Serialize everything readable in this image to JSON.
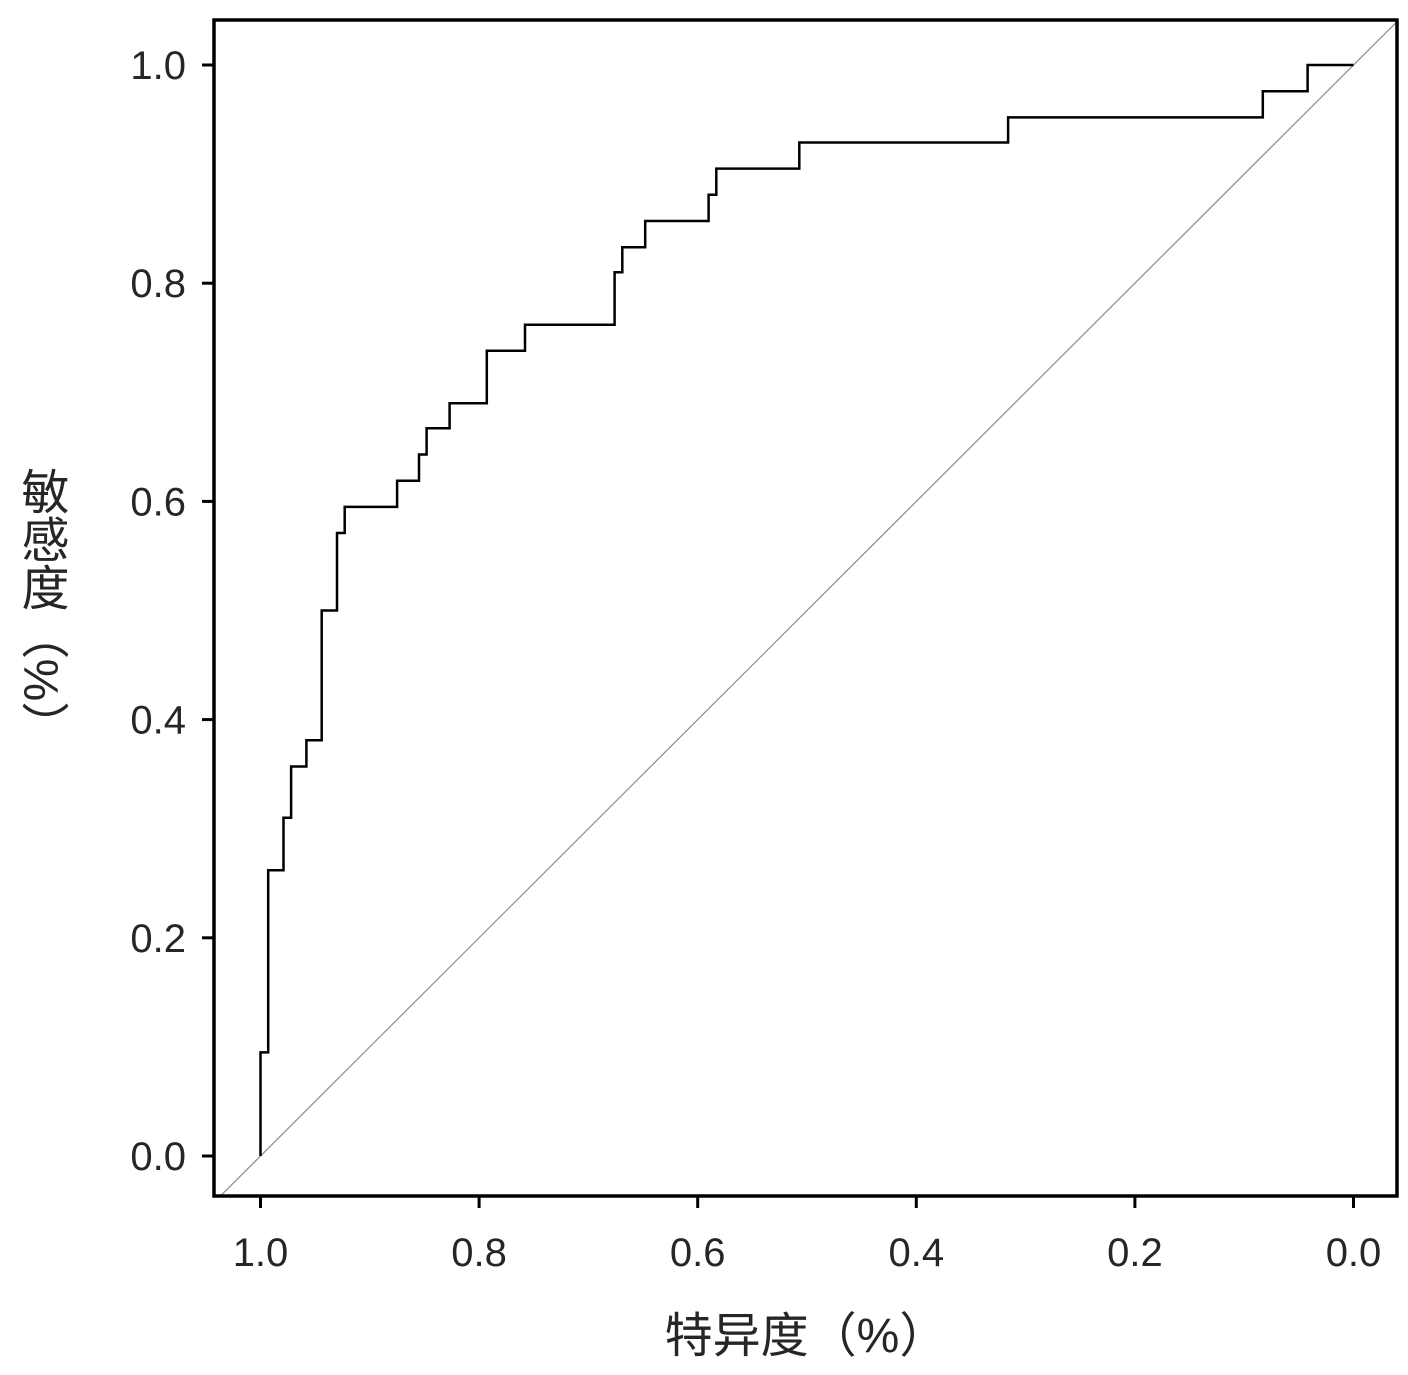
{
  "chart_data": {
    "type": "line",
    "xlabel": "特异度（%）",
    "ylabel": "敏感度（%）",
    "xlim": [
      1.04,
      -0.04
    ],
    "ylim": [
      -0.04,
      1.04
    ],
    "x_direction": "reversed",
    "xticks": [
      1.0,
      0.8,
      0.6,
      0.4,
      0.2,
      0.0
    ],
    "xtick_labels": [
      "1.0",
      "0.8",
      "0.6",
      "0.4",
      "0.2",
      "0.0"
    ],
    "yticks": [
      0.0,
      0.2,
      0.4,
      0.6,
      0.8,
      1.0
    ],
    "ytick_labels": [
      "0.0",
      "0.2",
      "0.4",
      "0.6",
      "0.8",
      "1.0"
    ],
    "grid": false,
    "legend": "none",
    "series": [
      {
        "type": "step-line",
        "color": "#000000",
        "points": [
          [
            1.0,
            0.0
          ],
          [
            1.0,
            0.095
          ],
          [
            0.993,
            0.095
          ],
          [
            0.993,
            0.262
          ],
          [
            0.979,
            0.262
          ],
          [
            0.979,
            0.31
          ],
          [
            0.972,
            0.31
          ],
          [
            0.972,
            0.357
          ],
          [
            0.958,
            0.357
          ],
          [
            0.958,
            0.381
          ],
          [
            0.944,
            0.381
          ],
          [
            0.944,
            0.5
          ],
          [
            0.93,
            0.5
          ],
          [
            0.93,
            0.571
          ],
          [
            0.923,
            0.571
          ],
          [
            0.923,
            0.595
          ],
          [
            0.875,
            0.595
          ],
          [
            0.875,
            0.619
          ],
          [
            0.855,
            0.619
          ],
          [
            0.855,
            0.643
          ],
          [
            0.848,
            0.643
          ],
          [
            0.848,
            0.667
          ],
          [
            0.827,
            0.667
          ],
          [
            0.827,
            0.69
          ],
          [
            0.793,
            0.69
          ],
          [
            0.793,
            0.738
          ],
          [
            0.758,
            0.738
          ],
          [
            0.758,
            0.762
          ],
          [
            0.676,
            0.762
          ],
          [
            0.676,
            0.81
          ],
          [
            0.669,
            0.81
          ],
          [
            0.669,
            0.833
          ],
          [
            0.648,
            0.833
          ],
          [
            0.648,
            0.857
          ],
          [
            0.59,
            0.857
          ],
          [
            0.59,
            0.881
          ],
          [
            0.583,
            0.881
          ],
          [
            0.583,
            0.905
          ],
          [
            0.507,
            0.905
          ],
          [
            0.507,
            0.929
          ],
          [
            0.316,
            0.929
          ],
          [
            0.316,
            0.952
          ],
          [
            0.083,
            0.952
          ],
          [
            0.083,
            0.976
          ],
          [
            0.042,
            0.976
          ],
          [
            0.042,
            1.0
          ],
          [
            0.0,
            1.0
          ]
        ]
      },
      {
        "type": "reference-line",
        "color": "#8c8c8c",
        "points": [
          [
            1.04,
            -0.04
          ],
          [
            -0.04,
            1.04
          ]
        ]
      }
    ]
  }
}
